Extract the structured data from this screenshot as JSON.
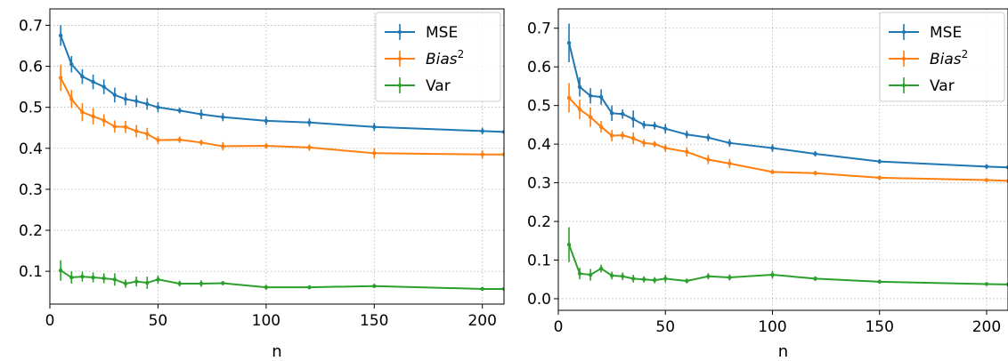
{
  "chart_data": [
    {
      "type": "line",
      "xlabel": "n",
      "ylabel": "",
      "xlim": [
        0,
        210
      ],
      "ylim": [
        0.02,
        0.74
      ],
      "xticks": [
        0,
        50,
        100,
        150,
        200
      ],
      "yticks": [
        0.1,
        0.2,
        0.3,
        0.4,
        0.5,
        0.6,
        0.7
      ],
      "grid": true,
      "legend_position": "top-right",
      "x": [
        5,
        10,
        15,
        20,
        25,
        30,
        35,
        40,
        45,
        50,
        60,
        70,
        80,
        100,
        120,
        150,
        200,
        210
      ],
      "series": [
        {
          "name": "MSE",
          "color": "#1f77b4",
          "values": [
            0.675,
            0.605,
            0.575,
            0.562,
            0.55,
            0.53,
            0.52,
            0.515,
            0.508,
            0.5,
            0.492,
            0.483,
            0.476,
            0.467,
            0.463,
            0.452,
            0.442,
            0.44
          ],
          "errors": [
            0.025,
            0.02,
            0.018,
            0.018,
            0.018,
            0.018,
            0.015,
            0.014,
            0.014,
            0.012,
            0.007,
            0.012,
            0.01,
            0.01,
            0.01,
            0.01,
            0.008,
            0
          ]
        },
        {
          "name": "Bias²",
          "label_base": "Bias",
          "label_sup": "2",
          "color": "#ff7f0e",
          "values": [
            0.572,
            0.52,
            0.488,
            0.478,
            0.468,
            0.453,
            0.452,
            0.442,
            0.435,
            0.42,
            0.421,
            0.414,
            0.405,
            0.406,
            0.402,
            0.388,
            0.385,
            0.385
          ],
          "errors": [
            0.032,
            0.022,
            0.022,
            0.02,
            0.015,
            0.015,
            0.015,
            0.015,
            0.015,
            0.01,
            0.008,
            0.007,
            0.01,
            0.007,
            0.008,
            0.012,
            0.01,
            0
          ]
        },
        {
          "name": "Var",
          "color": "#2ca02c",
          "values": [
            0.102,
            0.085,
            0.087,
            0.085,
            0.083,
            0.08,
            0.07,
            0.075,
            0.072,
            0.08,
            0.07,
            0.07,
            0.071,
            0.061,
            0.061,
            0.064,
            0.057,
            0.057
          ],
          "errors": [
            0.025,
            0.015,
            0.012,
            0.012,
            0.012,
            0.015,
            0.01,
            0.012,
            0.015,
            0.01,
            0.007,
            0.008,
            0.005,
            0.006,
            0.005,
            0.005,
            0.004,
            0
          ]
        }
      ]
    },
    {
      "type": "line",
      "xlabel": "n",
      "ylabel": "",
      "xlim": [
        0,
        210
      ],
      "ylim": [
        -0.03,
        0.75
      ],
      "xticks": [
        0,
        50,
        100,
        150,
        200
      ],
      "yticks": [
        0.0,
        0.1,
        0.2,
        0.3,
        0.4,
        0.5,
        0.6,
        0.7
      ],
      "grid": true,
      "legend_position": "top-right",
      "x": [
        5,
        10,
        15,
        20,
        25,
        30,
        35,
        40,
        45,
        50,
        60,
        70,
        80,
        100,
        120,
        150,
        200,
        210
      ],
      "series": [
        {
          "name": "MSE",
          "color": "#1f77b4",
          "values": [
            0.662,
            0.548,
            0.525,
            0.522,
            0.48,
            0.478,
            0.465,
            0.45,
            0.448,
            0.44,
            0.425,
            0.417,
            0.403,
            0.39,
            0.375,
            0.355,
            0.342,
            0.34
          ],
          "errors": [
            0.05,
            0.025,
            0.02,
            0.02,
            0.02,
            0.012,
            0.022,
            0.01,
            0.01,
            0.012,
            0.01,
            0.01,
            0.01,
            0.01,
            0.007,
            0.006,
            0.006,
            0
          ]
        },
        {
          "name": "Bias²",
          "label_base": "Bias",
          "label_sup": "2",
          "color": "#ff7f0e",
          "values": [
            0.52,
            0.49,
            0.47,
            0.445,
            0.422,
            0.423,
            0.415,
            0.403,
            0.4,
            0.39,
            0.38,
            0.36,
            0.35,
            0.328,
            0.325,
            0.313,
            0.307,
            0.305
          ],
          "errors": [
            0.038,
            0.025,
            0.025,
            0.015,
            0.015,
            0.01,
            0.015,
            0.01,
            0.008,
            0.01,
            0.012,
            0.012,
            0.012,
            0.006,
            0.006,
            0.006,
            0.005,
            0
          ]
        },
        {
          "name": "Var",
          "color": "#2ca02c",
          "values": [
            0.14,
            0.065,
            0.062,
            0.078,
            0.06,
            0.058,
            0.052,
            0.05,
            0.048,
            0.052,
            0.046,
            0.058,
            0.055,
            0.062,
            0.052,
            0.044,
            0.038,
            0.037
          ],
          "errors": [
            0.045,
            0.015,
            0.015,
            0.01,
            0.01,
            0.01,
            0.01,
            0.008,
            0.008,
            0.01,
            0.006,
            0.008,
            0.008,
            0.01,
            0.006,
            0.005,
            0.004,
            0
          ]
        }
      ]
    }
  ]
}
